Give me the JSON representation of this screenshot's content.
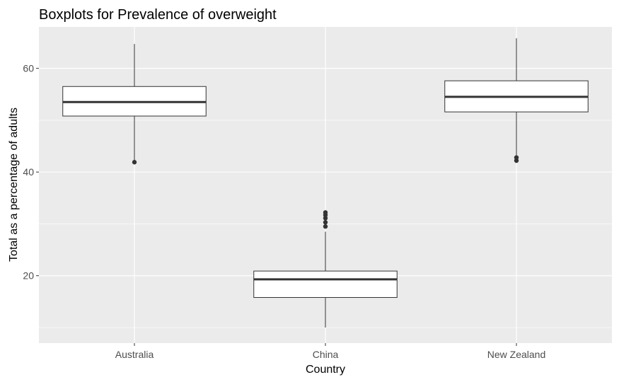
{
  "chart_data": {
    "type": "boxplot",
    "title": "Boxplots for Prevalence of overweight",
    "xlabel": "Country",
    "ylabel": "Total as a percentage of adults",
    "categories": [
      "Australia",
      "China",
      "New Zealand"
    ],
    "boxes": [
      {
        "category": "Australia",
        "whisker_low": 42.0,
        "q1": 50.8,
        "median": 53.5,
        "q3": 56.5,
        "whisker_high": 64.7,
        "outliers": [
          41.9
        ]
      },
      {
        "category": "China",
        "whisker_low": 10.0,
        "q1": 15.8,
        "median": 19.3,
        "q3": 20.9,
        "whisker_high": 28.5,
        "outliers": [
          29.5,
          30.3,
          31.1,
          31.7,
          32.2
        ]
      },
      {
        "category": "New Zealand",
        "whisker_low": 43.0,
        "q1": 51.6,
        "median": 54.5,
        "q3": 57.6,
        "whisker_high": 65.8,
        "outliers": [
          42.2,
          42.8
        ]
      }
    ],
    "yticks": [
      20,
      40,
      60
    ],
    "ylim": [
      7.0,
      68.0
    ],
    "grid": true,
    "colors": {
      "panel_background": "#ebebeb",
      "grid": "#ffffff",
      "box_fill": "#ffffff",
      "box_stroke": "#333333",
      "tick_text": "#4d4d4d"
    }
  }
}
